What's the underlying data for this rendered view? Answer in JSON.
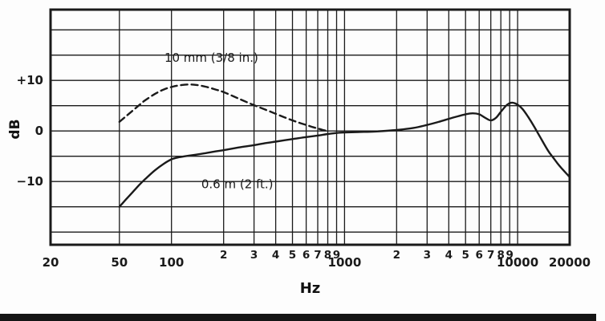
{
  "figure": {
    "xlabel": "Hz",
    "ylabel": "dB",
    "background": "#fdfdfd",
    "line_color": "#1a1a1a"
  },
  "chart_data": {
    "type": "line",
    "x_scale": "log",
    "xlim": [
      20,
      20000
    ],
    "ylim": [
      -22.5,
      24
    ],
    "xlabel": "Hz",
    "ylabel": "dB",
    "grid": true,
    "legend_position": "inline-annotations",
    "x_gridlines_hz": [
      50,
      100,
      200,
      300,
      400,
      500,
      600,
      700,
      800,
      900,
      1000,
      2000,
      3000,
      4000,
      5000,
      6000,
      7000,
      8000,
      9000,
      10000
    ],
    "y_gridlines_db": [
      20,
      15,
      10,
      5,
      0,
      -5,
      -10,
      -15,
      -20
    ],
    "y_ticks": [
      {
        "value": 10,
        "label": "+10"
      },
      {
        "value": 0,
        "label": "0"
      },
      {
        "value": -10,
        "label": "−10"
      }
    ],
    "x_ticks_major": [
      {
        "value": 20,
        "label": "20"
      },
      {
        "value": 50,
        "label": "50"
      },
      {
        "value": 100,
        "label": "100"
      },
      {
        "value": 1000,
        "label": "1000"
      },
      {
        "value": 10000,
        "label": "10000"
      },
      {
        "value": 20000,
        "label": "20000"
      }
    ],
    "x_ticks_minor": [
      {
        "value": 200,
        "label": "2"
      },
      {
        "value": 300,
        "label": "3"
      },
      {
        "value": 400,
        "label": "4"
      },
      {
        "value": 500,
        "label": "5"
      },
      {
        "value": 600,
        "label": "6"
      },
      {
        "value": 700,
        "label": "7"
      },
      {
        "value": 800,
        "label": "8"
      },
      {
        "value": 900,
        "label": "9"
      },
      {
        "value": 2000,
        "label": "2"
      },
      {
        "value": 3000,
        "label": "3"
      },
      {
        "value": 4000,
        "label": "4"
      },
      {
        "value": 5000,
        "label": "5"
      },
      {
        "value": 6000,
        "label": "6"
      },
      {
        "value": 7000,
        "label": "7"
      },
      {
        "value": 8000,
        "label": "8"
      },
      {
        "value": 9000,
        "label": "9"
      }
    ],
    "series": [
      {
        "name": "10 mm (3/8 in.)",
        "line_style": "dashed",
        "points_hz_db": [
          [
            50,
            1.8
          ],
          [
            55,
            3.0
          ],
          [
            60,
            4.1
          ],
          [
            65,
            5.1
          ],
          [
            70,
            6.0
          ],
          [
            80,
            7.3
          ],
          [
            90,
            8.2
          ],
          [
            100,
            8.7
          ],
          [
            110,
            9.0
          ],
          [
            125,
            9.2
          ],
          [
            140,
            9.1
          ],
          [
            160,
            8.7
          ],
          [
            180,
            8.2
          ],
          [
            200,
            7.7
          ],
          [
            230,
            6.8
          ],
          [
            260,
            6.0
          ],
          [
            300,
            5.1
          ],
          [
            350,
            4.2
          ],
          [
            400,
            3.4
          ],
          [
            450,
            2.7
          ],
          [
            500,
            2.1
          ],
          [
            550,
            1.6
          ],
          [
            600,
            1.2
          ],
          [
            650,
            0.8
          ],
          [
            700,
            0.5
          ],
          [
            750,
            0.2
          ],
          [
            800,
            0.0
          ]
        ]
      },
      {
        "name": "0.6 m (2 ft.)",
        "line_style": "solid",
        "points_hz_db": [
          [
            50,
            -15.0
          ],
          [
            55,
            -13.4
          ],
          [
            60,
            -12.0
          ],
          [
            65,
            -10.7
          ],
          [
            70,
            -9.6
          ],
          [
            80,
            -7.8
          ],
          [
            90,
            -6.5
          ],
          [
            100,
            -5.6
          ],
          [
            110,
            -5.2
          ],
          [
            125,
            -4.9
          ],
          [
            150,
            -4.5
          ],
          [
            175,
            -4.1
          ],
          [
            200,
            -3.8
          ],
          [
            250,
            -3.2
          ],
          [
            300,
            -2.8
          ],
          [
            350,
            -2.4
          ],
          [
            400,
            -2.1
          ],
          [
            500,
            -1.6
          ],
          [
            600,
            -1.2
          ],
          [
            700,
            -0.9
          ],
          [
            800,
            -0.6
          ],
          [
            900,
            -0.4
          ],
          [
            1000,
            -0.3
          ],
          [
            1200,
            -0.2
          ],
          [
            1500,
            -0.1
          ],
          [
            2000,
            0.2
          ],
          [
            2500,
            0.6
          ],
          [
            3000,
            1.2
          ],
          [
            3500,
            1.8
          ],
          [
            4000,
            2.4
          ],
          [
            4500,
            2.9
          ],
          [
            5000,
            3.3
          ],
          [
            5500,
            3.5
          ],
          [
            6000,
            3.3
          ],
          [
            6500,
            2.6
          ],
          [
            7000,
            2.1
          ],
          [
            7500,
            2.6
          ],
          [
            8000,
            3.8
          ],
          [
            8700,
            5.2
          ],
          [
            9300,
            5.6
          ],
          [
            10000,
            5.2
          ],
          [
            10700,
            4.3
          ],
          [
            11500,
            2.8
          ],
          [
            12500,
            0.8
          ],
          [
            13500,
            -1.2
          ],
          [
            15000,
            -3.9
          ],
          [
            16000,
            -5.2
          ],
          [
            17000,
            -6.4
          ],
          [
            18000,
            -7.4
          ],
          [
            19000,
            -8.3
          ],
          [
            20000,
            -9.1
          ]
        ]
      }
    ],
    "annotations": [
      {
        "text": "10 mm (3/8 in.)",
        "hz": 170,
        "db": 14.5
      },
      {
        "text": "0.6 m (2 ft.)",
        "hz": 240,
        "db": -10.5
      }
    ]
  }
}
